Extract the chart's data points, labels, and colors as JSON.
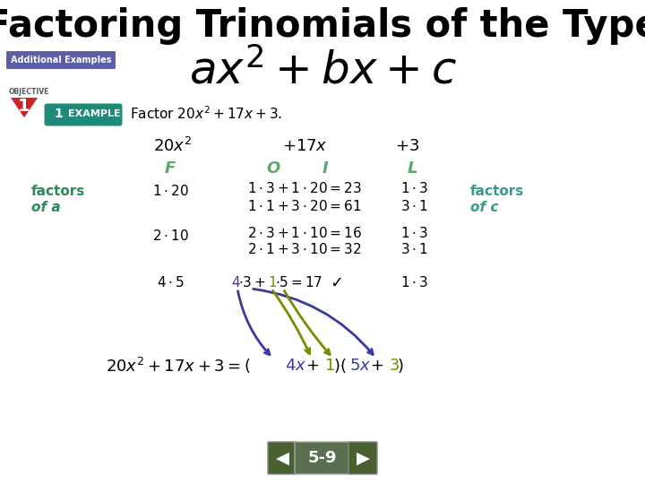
{
  "bg_color": "#ffffff",
  "title_color": "#000000",
  "green_color": "#2d8a57",
  "teal_color": "#3a9a8a",
  "foil_color": "#5aaa6a",
  "purple": "#3a3a9e",
  "olive": "#7a8c00",
  "nav_bg_arrow": "#4a6030",
  "nav_bg_center": "#5a6e50",
  "additional_examples_bg": "#5b5ea6",
  "objective_red": "#cc2222",
  "slide_number": "5-9",
  "title_line1": "Factoring Trinomials of the Type",
  "title_line2": "ax² + bx + c"
}
